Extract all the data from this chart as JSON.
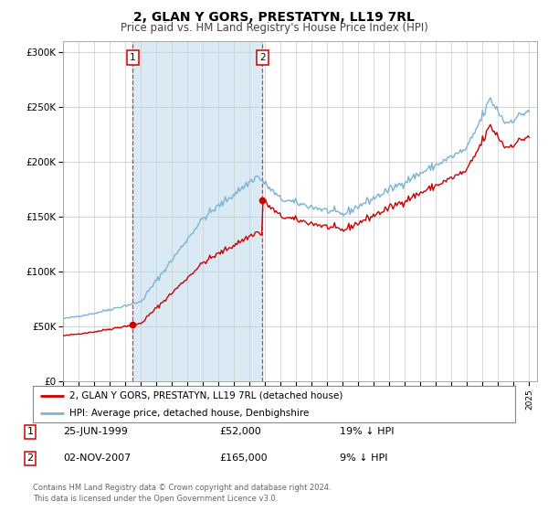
{
  "title": "2, GLAN Y GORS, PRESTATYN, LL19 7RL",
  "subtitle": "Price paid vs. HM Land Registry's House Price Index (HPI)",
  "ylim": [
    0,
    310000
  ],
  "yticks": [
    0,
    50000,
    100000,
    150000,
    200000,
    250000,
    300000
  ],
  "ytick_labels": [
    "£0",
    "£50K",
    "£100K",
    "£150K",
    "£200K",
    "£250K",
    "£300K"
  ],
  "hpi_color": "#7ab3d4",
  "price_color": "#cc0000",
  "shade_color": "#daeaf5",
  "transaction1": {
    "date_num": 1999.49,
    "price": 52000,
    "label": "1"
  },
  "transaction2": {
    "date_num": 2007.84,
    "price": 165000,
    "label": "2"
  },
  "legend_line1": "2, GLAN Y GORS, PRESTATYN, LL19 7RL (detached house)",
  "legend_line2": "HPI: Average price, detached house, Denbighshire",
  "table_row1_num": "1",
  "table_row1_date": "25-JUN-1999",
  "table_row1_price": "£52,000",
  "table_row1_hpi": "19% ↓ HPI",
  "table_row2_num": "2",
  "table_row2_date": "02-NOV-2007",
  "table_row2_price": "£165,000",
  "table_row2_hpi": "9% ↓ HPI",
  "footer1": "Contains HM Land Registry data © Crown copyright and database right 2024.",
  "footer2": "This data is licensed under the Open Government Licence v3.0.",
  "title_fontsize": 10,
  "subtitle_fontsize": 8.5,
  "background_color": "#ffffff"
}
